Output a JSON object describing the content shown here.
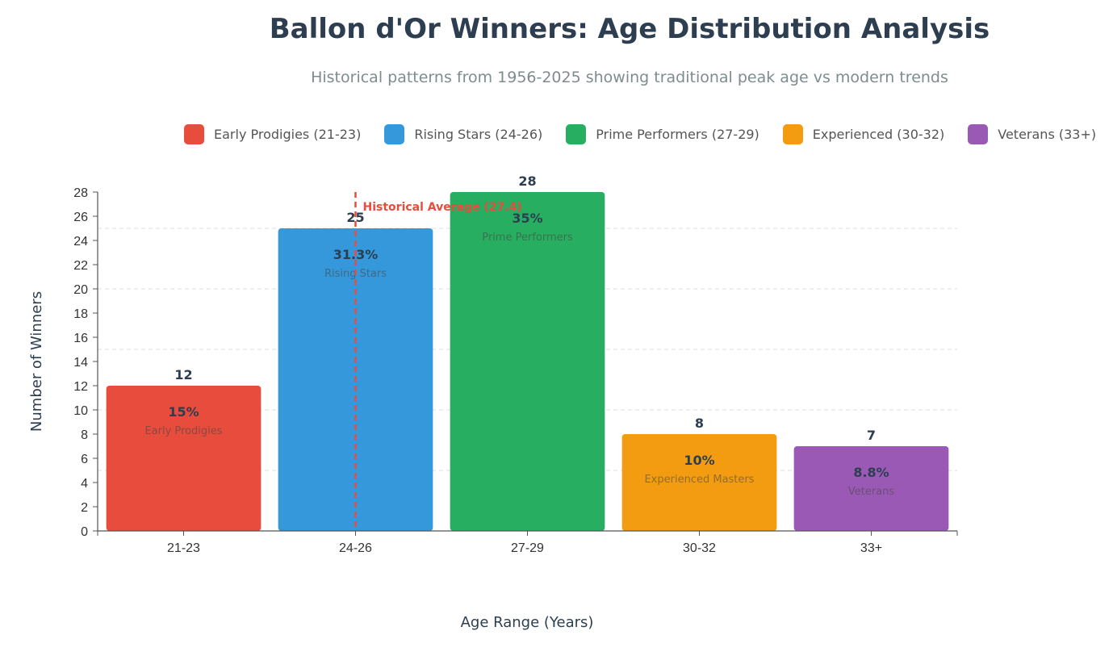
{
  "title": "Ballon d'Or Winners: Age Distribution Analysis",
  "subtitle": "Historical patterns from 1956-2025 showing traditional peak age vs modern trends",
  "legend": [
    {
      "label": "Early Prodigies (21-23)",
      "color": "#e74c3c"
    },
    {
      "label": "Rising Stars (24-26)",
      "color": "#3498db"
    },
    {
      "label": "Prime Performers (27-29)",
      "color": "#27ae60"
    },
    {
      "label": "Experienced (30-32)",
      "color": "#f39c12"
    },
    {
      "label": "Veterans (33+)",
      "color": "#9b59b6"
    }
  ],
  "chart_data": {
    "type": "bar",
    "title": "Ballon d'Or Winners: Age Distribution Analysis",
    "xlabel": "Age Range (Years)",
    "ylabel": "Number of Winners",
    "ylim": [
      0,
      28
    ],
    "yticks": [
      "0",
      "2",
      "4",
      "6",
      "8",
      "10",
      "12",
      "14",
      "16",
      "18",
      "20",
      "22",
      "24",
      "26",
      "28"
    ],
    "categories": [
      "21-23",
      "24-26",
      "27-29",
      "30-32",
      "33+"
    ],
    "values": [
      12,
      25,
      28,
      8,
      7
    ],
    "value_labels": [
      "12",
      "25",
      "28",
      "8",
      "7"
    ],
    "percentages": [
      "15%",
      "31.3%",
      "35%",
      "10%",
      "8.8%"
    ],
    "bar_names": [
      "Early Prodigies",
      "Rising Stars",
      "Prime Performers",
      "Experienced Masters",
      "Veterans"
    ],
    "colors": [
      "#e74c3c",
      "#3498db",
      "#27ae60",
      "#f39c12",
      "#9b59b6"
    ],
    "reference_line": {
      "label": "Historical Average (27.4)",
      "category_index": 1,
      "color": "#e74c3c"
    },
    "grid_values": [
      5,
      10,
      15,
      20,
      25
    ]
  }
}
